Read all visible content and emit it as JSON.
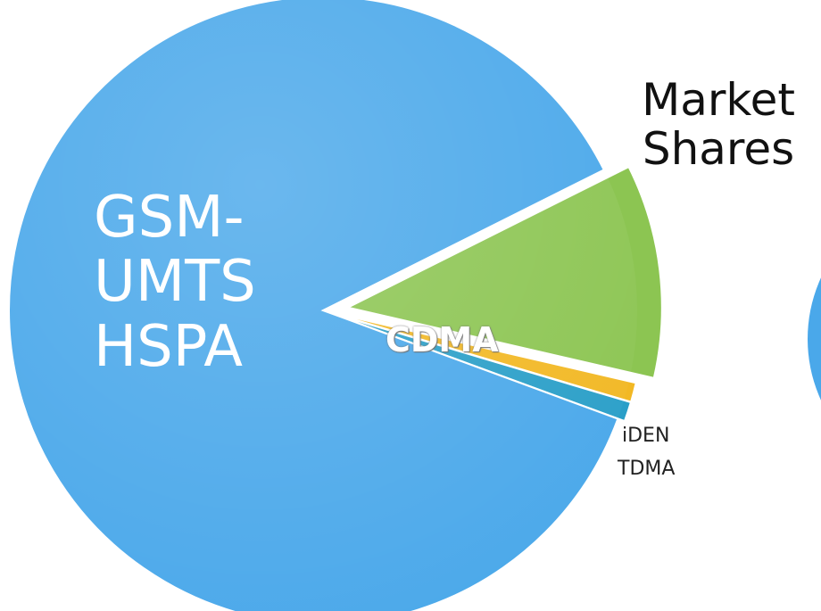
{
  "chart_data": {
    "type": "pie",
    "title": "Market Shares",
    "categories": [
      "CDMA",
      "iDEN",
      "TDMA",
      "GSM-\nUMTS\nHSPA"
    ],
    "values": [
      11,
      1,
      1,
      87
    ],
    "colors": [
      "#8cc552",
      "#f2b824",
      "#2a9fc8",
      "#4aa8ea"
    ]
  }
}
